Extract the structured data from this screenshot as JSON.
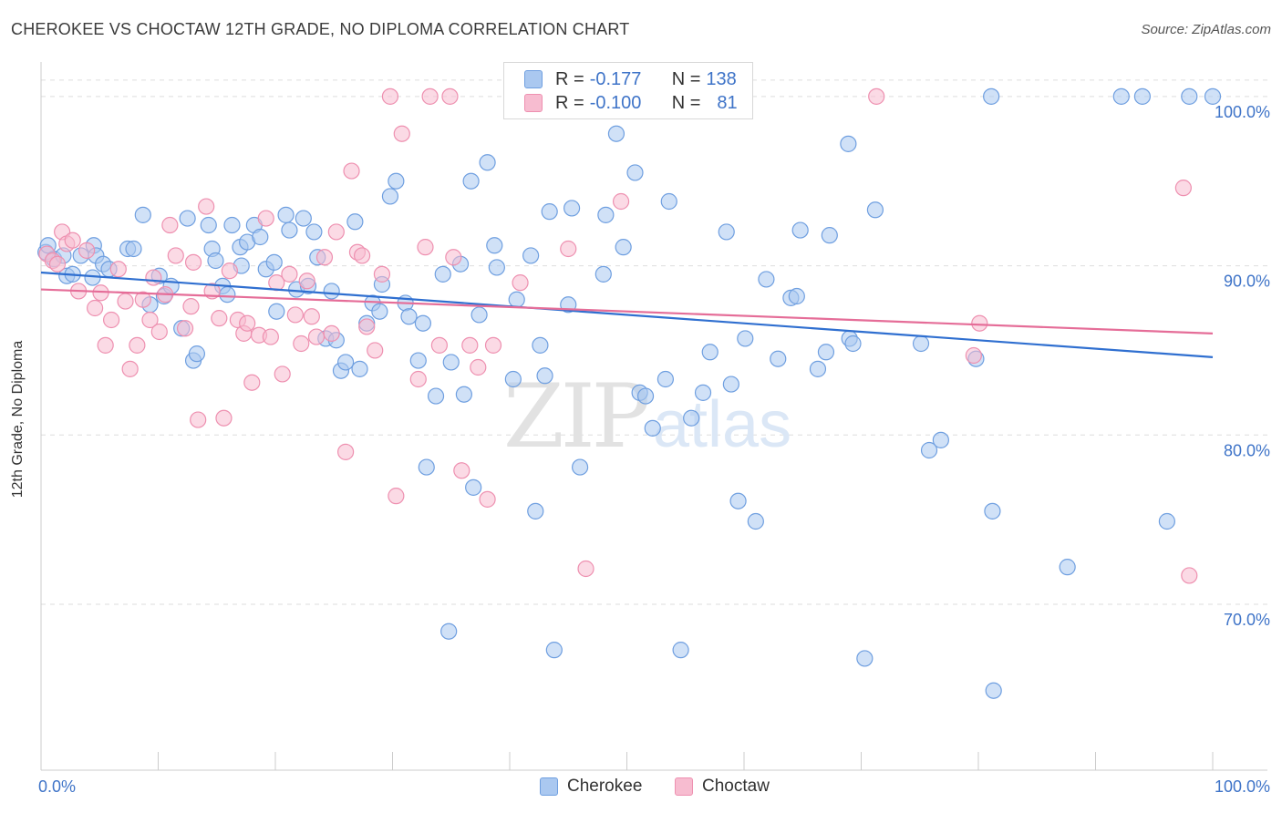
{
  "title": "CHEROKEE VS CHOCTAW 12TH GRADE, NO DIPLOMA CORRELATION CHART",
  "source": "Source: ZipAtlas.com",
  "colors": {
    "cherokee_fill": "#aac8f0",
    "cherokee_stroke": "#6f9fe0",
    "cherokee_line": "#2f6fd0",
    "choctaw_fill": "#f7bcd0",
    "choctaw_stroke": "#ee90b0",
    "choctaw_line": "#e56d98",
    "axis_label": "#3f74c8",
    "grid": "#dedede"
  },
  "legend_top": {
    "rows": [
      {
        "series": "Cherokee",
        "r_label": "R =",
        "r_value": "-0.177",
        "n_label": "N =",
        "n_value": "138"
      },
      {
        "series": "Choctaw",
        "r_label": "R =",
        "r_value": "-0.100",
        "n_label": "N =",
        "n_value": "81"
      }
    ]
  },
  "bottom_legend": [
    "Cherokee",
    "Choctaw"
  ],
  "chart_data": {
    "type": "scatter",
    "title": "CHEROKEE VS CHOCTAW 12TH GRADE, NO DIPLOMA CORRELATION CHART",
    "xlabel": "",
    "ylabel": "12th Grade, No Diploma",
    "xlim": [
      0,
      100
    ],
    "ylim": [
      60.2,
      101.5
    ],
    "x_tick_labels": [
      "0.0%",
      "100.0%"
    ],
    "y_ticks": [
      70,
      80,
      90,
      100
    ],
    "y_tick_labels": [
      "70.0%",
      "80.0%",
      "90.0%",
      "100.0%"
    ],
    "grid": true,
    "legend_position": "bottom",
    "watermark": "ZIPatlas",
    "series": [
      {
        "name": "Cherokee",
        "r": -0.177,
        "n": 138,
        "trend": {
          "x": [
            0,
            100
          ],
          "y": [
            89.6,
            84.6
          ]
        },
        "points": [
          [
            0.4,
            90.8
          ],
          [
            0.6,
            91.2
          ],
          [
            1.1,
            90.4
          ],
          [
            1.9,
            90.6
          ],
          [
            2.2,
            89.4
          ],
          [
            2.7,
            89.5
          ],
          [
            3.4,
            90.6
          ],
          [
            4.4,
            89.3
          ],
          [
            4.5,
            91.2
          ],
          [
            4.7,
            90.6
          ],
          [
            5.3,
            90.1
          ],
          [
            5.8,
            89.8
          ],
          [
            7.4,
            91.0
          ],
          [
            7.9,
            91.0
          ],
          [
            8.7,
            93.0
          ],
          [
            9.3,
            87.7
          ],
          [
            10.1,
            89.4
          ],
          [
            10.5,
            88.2
          ],
          [
            11.1,
            88.8
          ],
          [
            12.0,
            86.3
          ],
          [
            12.5,
            92.8
          ],
          [
            13.0,
            84.4
          ],
          [
            13.3,
            84.8
          ],
          [
            14.3,
            92.4
          ],
          [
            14.6,
            91.0
          ],
          [
            14.9,
            90.3
          ],
          [
            15.5,
            88.8
          ],
          [
            15.9,
            88.3
          ],
          [
            16.3,
            92.4
          ],
          [
            17.0,
            91.1
          ],
          [
            17.1,
            90.0
          ],
          [
            17.6,
            91.4
          ],
          [
            18.2,
            92.4
          ],
          [
            18.7,
            91.7
          ],
          [
            19.2,
            89.8
          ],
          [
            19.9,
            90.2
          ],
          [
            20.1,
            87.3
          ],
          [
            20.9,
            93.0
          ],
          [
            21.2,
            92.1
          ],
          [
            21.8,
            88.6
          ],
          [
            22.4,
            92.8
          ],
          [
            22.8,
            88.8
          ],
          [
            23.3,
            92.0
          ],
          [
            23.6,
            90.5
          ],
          [
            24.3,
            85.7
          ],
          [
            24.8,
            88.5
          ],
          [
            25.2,
            85.6
          ],
          [
            25.6,
            83.8
          ],
          [
            26.0,
            84.3
          ],
          [
            26.8,
            92.6
          ],
          [
            27.2,
            83.9
          ],
          [
            27.8,
            86.6
          ],
          [
            28.3,
            87.8
          ],
          [
            28.9,
            87.3
          ],
          [
            29.1,
            88.9
          ],
          [
            29.8,
            94.1
          ],
          [
            30.3,
            95.0
          ],
          [
            31.1,
            87.8
          ],
          [
            31.4,
            87.0
          ],
          [
            32.2,
            84.4
          ],
          [
            32.6,
            86.6
          ],
          [
            32.9,
            78.1
          ],
          [
            33.7,
            82.3
          ],
          [
            34.3,
            89.5
          ],
          [
            34.8,
            68.4
          ],
          [
            35.0,
            84.3
          ],
          [
            35.8,
            90.1
          ],
          [
            36.1,
            82.4
          ],
          [
            36.7,
            95.0
          ],
          [
            36.9,
            76.9
          ],
          [
            37.4,
            87.1
          ],
          [
            38.1,
            96.1
          ],
          [
            38.7,
            91.2
          ],
          [
            38.9,
            89.9
          ],
          [
            40.3,
            83.3
          ],
          [
            40.6,
            88.0
          ],
          [
            41.8,
            90.6
          ],
          [
            42.2,
            75.5
          ],
          [
            42.6,
            85.3
          ],
          [
            43.0,
            83.5
          ],
          [
            43.4,
            93.2
          ],
          [
            43.8,
            67.3
          ],
          [
            45.0,
            87.7
          ],
          [
            45.3,
            93.4
          ],
          [
            46.0,
            78.1
          ],
          [
            46.8,
            99.8
          ],
          [
            48.0,
            89.5
          ],
          [
            48.2,
            93.0
          ],
          [
            49.1,
            97.8
          ],
          [
            49.7,
            91.1
          ],
          [
            50.7,
            95.5
          ],
          [
            51.1,
            82.5
          ],
          [
            51.6,
            82.3
          ],
          [
            52.2,
            80.4
          ],
          [
            53.3,
            83.3
          ],
          [
            53.6,
            93.8
          ],
          [
            54.1,
            100.0
          ],
          [
            54.6,
            67.3
          ],
          [
            55.5,
            81.0
          ],
          [
            56.5,
            82.5
          ],
          [
            57.1,
            84.9
          ],
          [
            58.5,
            92.0
          ],
          [
            58.9,
            83.0
          ],
          [
            59.5,
            76.1
          ],
          [
            60.1,
            85.7
          ],
          [
            61.0,
            74.9
          ],
          [
            61.9,
            89.2
          ],
          [
            62.9,
            84.5
          ],
          [
            64.0,
            88.1
          ],
          [
            64.5,
            88.2
          ],
          [
            64.8,
            92.1
          ],
          [
            66.3,
            83.9
          ],
          [
            67.0,
            84.9
          ],
          [
            67.3,
            91.8
          ],
          [
            68.9,
            97.2
          ],
          [
            69.0,
            85.7
          ],
          [
            69.3,
            85.4
          ],
          [
            70.3,
            66.8
          ],
          [
            71.2,
            93.3
          ],
          [
            75.1,
            85.4
          ],
          [
            75.8,
            79.1
          ],
          [
            76.8,
            79.7
          ],
          [
            79.8,
            84.5
          ],
          [
            81.1,
            100.0
          ],
          [
            81.2,
            75.5
          ],
          [
            81.3,
            64.9
          ],
          [
            87.6,
            72.2
          ],
          [
            92.2,
            100.0
          ],
          [
            94.0,
            100.0
          ],
          [
            96.1,
            74.9
          ],
          [
            98.0,
            100.0
          ],
          [
            100.0,
            100.0
          ]
        ]
      },
      {
        "name": "Choctaw",
        "r": -0.1,
        "n": 81,
        "trend": {
          "x": [
            0,
            100
          ],
          "y": [
            88.6,
            86.0
          ]
        },
        "points": [
          [
            0.5,
            90.7
          ],
          [
            1.0,
            90.3
          ],
          [
            1.4,
            90.1
          ],
          [
            1.8,
            92.0
          ],
          [
            2.2,
            91.3
          ],
          [
            2.7,
            91.5
          ],
          [
            3.2,
            88.5
          ],
          [
            3.9,
            90.9
          ],
          [
            4.6,
            87.5
          ],
          [
            5.1,
            88.4
          ],
          [
            5.5,
            85.3
          ],
          [
            6.0,
            86.8
          ],
          [
            6.6,
            89.8
          ],
          [
            7.2,
            87.9
          ],
          [
            7.6,
            83.9
          ],
          [
            8.2,
            85.3
          ],
          [
            8.7,
            88.0
          ],
          [
            9.3,
            86.8
          ],
          [
            9.6,
            89.3
          ],
          [
            10.1,
            86.1
          ],
          [
            10.6,
            88.3
          ],
          [
            11.0,
            92.4
          ],
          [
            11.5,
            90.6
          ],
          [
            12.3,
            86.3
          ],
          [
            12.8,
            87.6
          ],
          [
            13.0,
            90.2
          ],
          [
            13.4,
            80.9
          ],
          [
            14.1,
            93.5
          ],
          [
            14.6,
            88.5
          ],
          [
            15.2,
            86.9
          ],
          [
            15.6,
            81.0
          ],
          [
            16.1,
            89.7
          ],
          [
            16.8,
            86.8
          ],
          [
            17.3,
            86.0
          ],
          [
            17.6,
            86.6
          ],
          [
            18.0,
            83.1
          ],
          [
            18.6,
            85.9
          ],
          [
            19.2,
            92.8
          ],
          [
            19.6,
            85.8
          ],
          [
            20.1,
            89.0
          ],
          [
            20.6,
            83.6
          ],
          [
            21.2,
            89.5
          ],
          [
            21.7,
            87.1
          ],
          [
            22.2,
            85.4
          ],
          [
            22.7,
            89.1
          ],
          [
            23.1,
            87.0
          ],
          [
            23.5,
            85.8
          ],
          [
            24.2,
            90.5
          ],
          [
            24.8,
            86.0
          ],
          [
            25.2,
            92.0
          ],
          [
            26.0,
            79.0
          ],
          [
            26.5,
            95.6
          ],
          [
            27.0,
            90.8
          ],
          [
            27.4,
            90.6
          ],
          [
            27.8,
            86.4
          ],
          [
            28.5,
            85.0
          ],
          [
            29.1,
            89.5
          ],
          [
            29.8,
            100.0
          ],
          [
            30.3,
            76.4
          ],
          [
            30.8,
            97.8
          ],
          [
            32.2,
            83.3
          ],
          [
            32.8,
            91.1
          ],
          [
            33.2,
            100.0
          ],
          [
            34.0,
            85.3
          ],
          [
            34.9,
            100.0
          ],
          [
            35.2,
            90.5
          ],
          [
            35.9,
            77.9
          ],
          [
            36.6,
            85.3
          ],
          [
            37.3,
            84.0
          ],
          [
            38.1,
            76.2
          ],
          [
            38.6,
            85.3
          ],
          [
            40.9,
            89.0
          ],
          [
            42.3,
            100.0
          ],
          [
            45.0,
            91.0
          ],
          [
            46.5,
            72.1
          ],
          [
            49.5,
            93.8
          ],
          [
            71.3,
            100.0
          ],
          [
            79.6,
            84.7
          ],
          [
            80.1,
            86.6
          ],
          [
            97.5,
            94.6
          ],
          [
            98.0,
            71.7
          ]
        ]
      }
    ]
  }
}
